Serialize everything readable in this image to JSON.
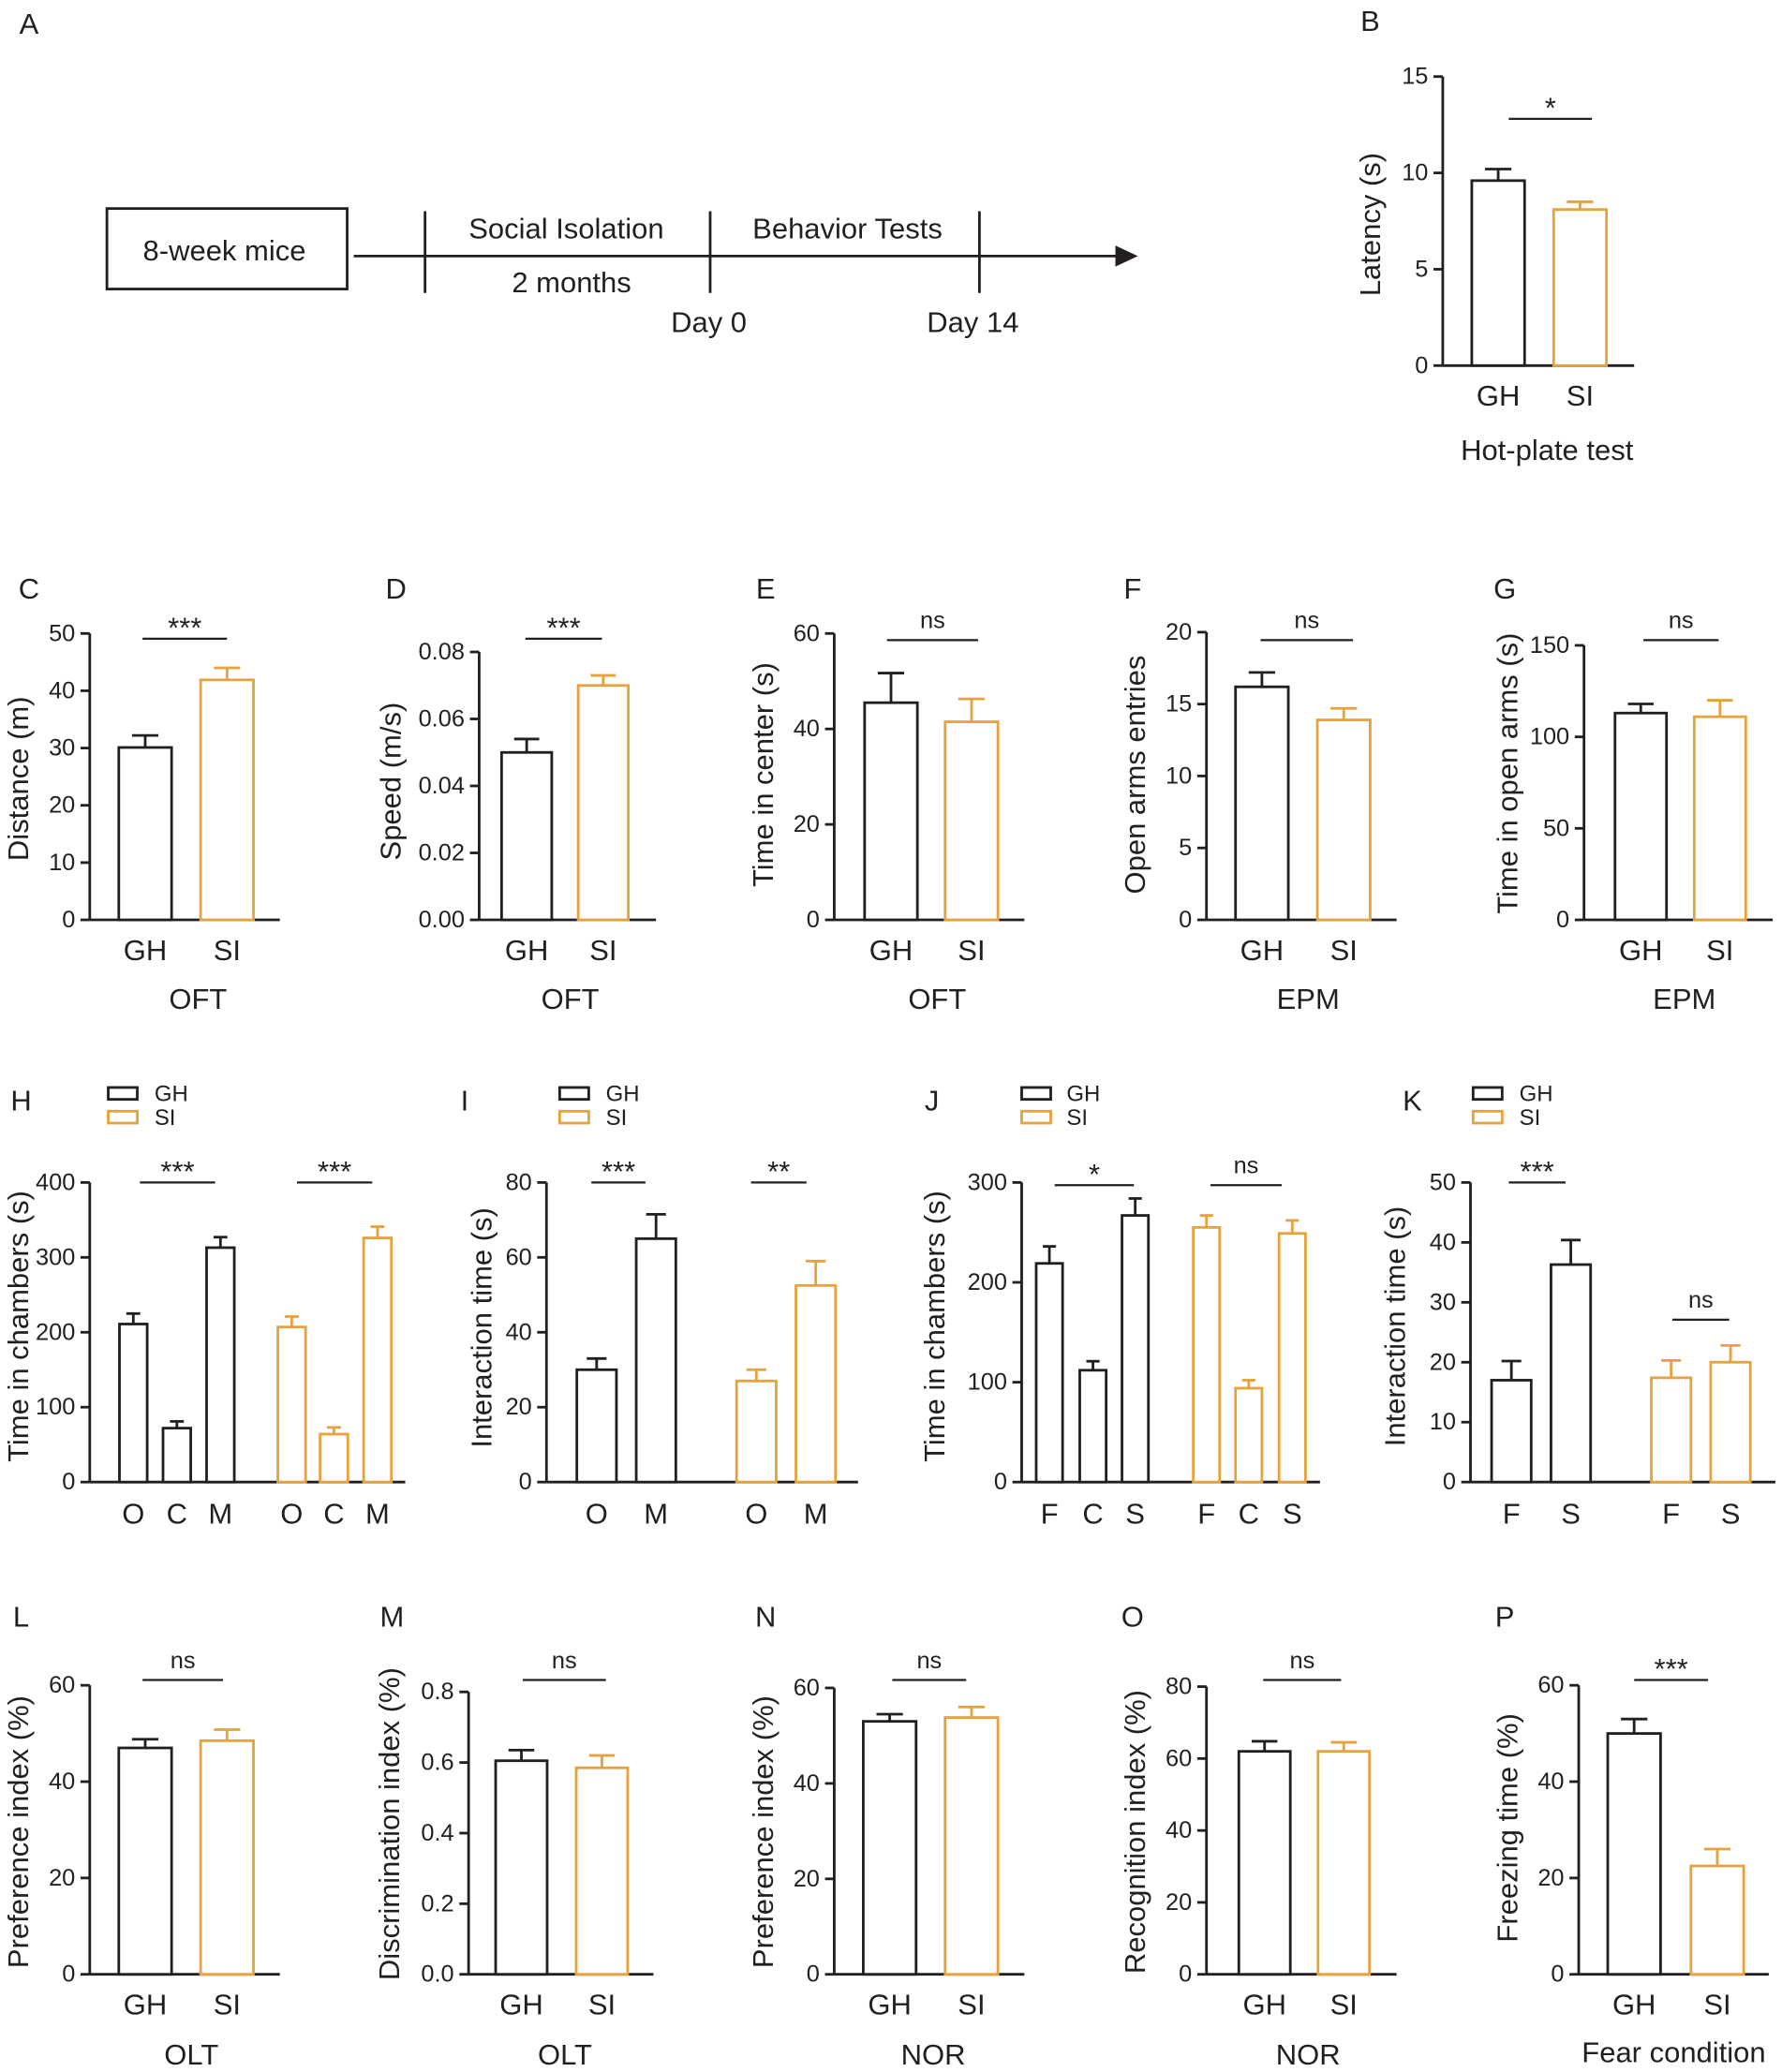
{
  "timeline": {
    "panel": "A",
    "start_label": "8-week mice",
    "phase1_label": "Social Isolation",
    "phase1_duration": "2 months",
    "phase2_label": "Behavior Tests",
    "day0_label": "Day 0",
    "day14_label": "Day 14"
  },
  "colors": {
    "GH": "#231f20",
    "SI": "#e6a23c"
  },
  "chart_data": [
    {
      "panel": "B",
      "type": "bar",
      "ylabel": "Latency (s)",
      "xlabel": "Hot-plate test",
      "ylim": [
        0,
        15
      ],
      "yticks": [
        "0",
        "5",
        "10",
        "15"
      ],
      "categories": [
        "GH",
        "SI"
      ],
      "values": [
        9.6,
        8.1
      ],
      "errors": [
        0.6,
        0.4
      ],
      "significance": [
        {
          "from": 0,
          "to": 1,
          "label": "*"
        }
      ]
    },
    {
      "panel": "C",
      "type": "bar",
      "ylabel": "Distance (m)",
      "xlabel": "OFT",
      "ylim": [
        0,
        50
      ],
      "yticks": [
        "0",
        "10",
        "20",
        "30",
        "40",
        "50"
      ],
      "categories": [
        "GH",
        "SI"
      ],
      "values": [
        30.1,
        41.9
      ],
      "errors": [
        2.1,
        2.1
      ],
      "significance": [
        {
          "from": 0,
          "to": 1,
          "label": "***"
        }
      ]
    },
    {
      "panel": "D",
      "type": "bar",
      "ylabel": "Speed (m/s)",
      "xlabel": "OFT",
      "ylim": [
        0,
        0.08
      ],
      "yticks": [
        "0.00",
        "0.02",
        "0.04",
        "0.06",
        "0.08"
      ],
      "categories": [
        "GH",
        "SI"
      ],
      "values": [
        0.05,
        0.07
      ],
      "errors": [
        0.004,
        0.003
      ],
      "significance": [
        {
          "from": 0,
          "to": 1,
          "label": "***"
        }
      ]
    },
    {
      "panel": "E",
      "type": "bar",
      "ylabel": "Time in center (s)",
      "xlabel": "OFT",
      "ylim": [
        0,
        60
      ],
      "yticks": [
        "0",
        "20",
        "40",
        "60"
      ],
      "categories": [
        "GH",
        "SI"
      ],
      "values": [
        45.5,
        41.5
      ],
      "errors": [
        6.2,
        4.8
      ],
      "significance": [
        {
          "from": 0,
          "to": 1,
          "label": "ns"
        }
      ]
    },
    {
      "panel": "F",
      "type": "bar",
      "ylabel": "Open arms entries",
      "xlabel": "EPM",
      "ylim": [
        0,
        20
      ],
      "yticks": [
        "0",
        "5",
        "10",
        "15",
        "20"
      ],
      "categories": [
        "GH",
        "SI"
      ],
      "values": [
        16.2,
        13.9
      ],
      "errors": [
        1.0,
        0.8
      ],
      "significance": [
        {
          "from": 0,
          "to": 1,
          "label": "ns"
        }
      ]
    },
    {
      "panel": "G",
      "type": "bar",
      "ylabel": "Time in open arms (s)",
      "xlabel": "EPM",
      "ylim": [
        0,
        150
      ],
      "yticks": [
        "0",
        "50",
        "100",
        "150"
      ],
      "categories": [
        "GH",
        "SI"
      ],
      "values": [
        113,
        111
      ],
      "errors": [
        5,
        9
      ],
      "significance": [
        {
          "from": 0,
          "to": 1,
          "label": "ns"
        }
      ]
    },
    {
      "panel": "H",
      "type": "bar",
      "ylabel": "Time in chambers (s)",
      "xlabel": "",
      "ylim": [
        0,
        400
      ],
      "yticks": [
        "0",
        "100",
        "200",
        "300",
        "400"
      ],
      "series": [
        {
          "name": "GH",
          "categories": [
            "O",
            "C",
            "M"
          ],
          "values": [
            211,
            72,
            313
          ],
          "errors": [
            14,
            9,
            14
          ],
          "significance": {
            "from": 0,
            "to": 2,
            "label": "***"
          }
        },
        {
          "name": "SI",
          "categories": [
            "O",
            "C",
            "M"
          ],
          "values": [
            207,
            64,
            326
          ],
          "errors": [
            14,
            9,
            15
          ],
          "significance": {
            "from": 0,
            "to": 2,
            "label": "***"
          }
        }
      ]
    },
    {
      "panel": "I",
      "type": "bar",
      "ylabel": "Interaction time (s)",
      "xlabel": "",
      "ylim": [
        0,
        80
      ],
      "yticks": [
        "0",
        "20",
        "40",
        "60",
        "80"
      ],
      "series": [
        {
          "name": "GH",
          "categories": [
            "O",
            "M"
          ],
          "values": [
            30,
            65
          ],
          "errors": [
            3,
            6.5
          ],
          "significance": {
            "from": 0,
            "to": 1,
            "label": "***"
          }
        },
        {
          "name": "SI",
          "categories": [
            "O",
            "M"
          ],
          "values": [
            27,
            52.5
          ],
          "errors": [
            3,
            6.5
          ],
          "significance": {
            "from": 0,
            "to": 1,
            "label": "**"
          }
        }
      ]
    },
    {
      "panel": "J",
      "type": "bar",
      "ylabel": "Time in chambers (s)",
      "xlabel": "",
      "ylim": [
        0,
        300
      ],
      "yticks": [
        "0",
        "100",
        "200",
        "300"
      ],
      "series": [
        {
          "name": "GH",
          "categories": [
            "F",
            "C",
            "S"
          ],
          "values": [
            219,
            112,
            267
          ],
          "errors": [
            17,
            9,
            17
          ],
          "significance": {
            "from": 0,
            "to": 2,
            "label": "*"
          }
        },
        {
          "name": "SI",
          "categories": [
            "F",
            "C",
            "S"
          ],
          "values": [
            255,
            94,
            249
          ],
          "errors": [
            12,
            8,
            13
          ],
          "significance": {
            "from": 0,
            "to": 2,
            "label": "ns"
          }
        }
      ]
    },
    {
      "panel": "K",
      "type": "bar",
      "ylabel": "Interaction time (s)",
      "xlabel": "",
      "ylim": [
        0,
        50
      ],
      "yticks": [
        "0",
        "10",
        "20",
        "30",
        "40",
        "50"
      ],
      "series": [
        {
          "name": "GH",
          "categories": [
            "F",
            "S"
          ],
          "values": [
            17,
            36.3
          ],
          "errors": [
            3.2,
            4.1
          ],
          "significance": {
            "from": 0,
            "to": 1,
            "label": "***"
          }
        },
        {
          "name": "SI",
          "categories": [
            "F",
            "S"
          ],
          "values": [
            17.4,
            20
          ],
          "errors": [
            2.9,
            2.8
          ],
          "significance": {
            "from": 0,
            "to": 1,
            "label": "ns"
          }
        }
      ]
    },
    {
      "panel": "L",
      "type": "bar",
      "ylabel": "Preference index (%)",
      "xlabel": "OLT",
      "ylim": [
        0,
        60
      ],
      "yticks": [
        "0",
        "20",
        "40",
        "60"
      ],
      "categories": [
        "GH",
        "SI"
      ],
      "values": [
        47.0,
        48.5
      ],
      "errors": [
        1.8,
        2.3
      ],
      "significance": [
        {
          "from": 0,
          "to": 1,
          "label": "ns"
        }
      ]
    },
    {
      "panel": "M",
      "type": "bar",
      "ylabel": "Discrimination index (%)",
      "xlabel": "OLT",
      "ylim": [
        0,
        0.8
      ],
      "yticks": [
        "0.0",
        "0.2",
        "0.4",
        "0.6",
        "0.8"
      ],
      "categories": [
        "GH",
        "SI"
      ],
      "values": [
        0.605,
        0.585
      ],
      "errors": [
        0.03,
        0.035
      ],
      "significance": [
        {
          "from": 0,
          "to": 1,
          "label": "ns"
        }
      ]
    },
    {
      "panel": "N",
      "type": "bar",
      "ylabel": "Preference index (%)",
      "xlabel": "NOR",
      "ylim": [
        0,
        60
      ],
      "yticks": [
        "0",
        "20",
        "40",
        "60"
      ],
      "categories": [
        "GH",
        "SI"
      ],
      "values": [
        53.0,
        53.8
      ],
      "errors": [
        1.5,
        2.2
      ],
      "significance": [
        {
          "from": 0,
          "to": 1,
          "label": "ns"
        }
      ]
    },
    {
      "panel": "O",
      "type": "bar",
      "ylabel": "Recognition index (%)",
      "xlabel": "NOR",
      "ylim": [
        0,
        80
      ],
      "yticks": [
        "0",
        "20",
        "40",
        "60",
        "80"
      ],
      "categories": [
        "GH",
        "SI"
      ],
      "values": [
        62,
        62
      ],
      "errors": [
        2.8,
        2.5
      ],
      "significance": [
        {
          "from": 0,
          "to": 1,
          "label": "ns"
        }
      ]
    },
    {
      "panel": "P",
      "type": "bar",
      "ylabel": "Freezing time (%)",
      "xlabel": "Fear condition",
      "ylim": [
        0,
        60
      ],
      "yticks": [
        "0",
        "20",
        "40",
        "60"
      ],
      "categories": [
        "GH",
        "SI"
      ],
      "values": [
        50,
        22.5
      ],
      "errors": [
        3,
        3.5
      ],
      "significance": [
        {
          "from": 0,
          "to": 1,
          "label": "***"
        }
      ]
    }
  ]
}
